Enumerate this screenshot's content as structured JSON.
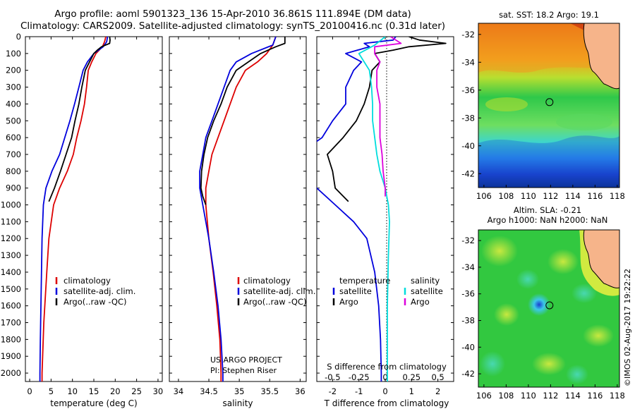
{
  "header": {
    "title_line1": "Argo profile: aoml 5901323_136 15-Apr-2010 36.861S 111.894E (DM data)",
    "title_line2": "Climatology: CARS2009. Satellite-adjusted climatology: synTS_20100416.nc (0.31d later)"
  },
  "colors": {
    "climatology": "#dd0000",
    "satellite": "#0000dd",
    "argo": "#000000",
    "salinity_satellite": "#00dddd",
    "salinity_argo": "#dd00dd",
    "land": "#f6b48a"
  },
  "chart_data": [
    {
      "type": "line",
      "xlabel": "temperature (deg C)",
      "ylabel": "",
      "xlim": [
        -1,
        31
      ],
      "ylim": [
        2050,
        0
      ],
      "xticks": [
        "0",
        "5",
        "10",
        "15",
        "20",
        "25",
        "30"
      ],
      "yticks": [
        "0",
        "100",
        "200",
        "300",
        "400",
        "500",
        "600",
        "700",
        "800",
        "900",
        "1000",
        "1100",
        "1200",
        "1300",
        "1400",
        "1500",
        "1600",
        "1700",
        "1800",
        "1900",
        "2000"
      ],
      "legend": {
        "placement": "middle-right",
        "entries": [
          "climatology",
          "satellite-adj. clim.",
          "Argo(..raw -QC)"
        ]
      },
      "series": [
        {
          "name": "climatology",
          "color": "#dd0000",
          "points": [
            [
              17.8,
              0
            ],
            [
              17.5,
              30
            ],
            [
              17,
              60
            ],
            [
              15.5,
              100
            ],
            [
              14.5,
              150
            ],
            [
              13.7,
              200
            ],
            [
              13.3,
              300
            ],
            [
              12.8,
              400
            ],
            [
              12,
              500
            ],
            [
              11,
              600
            ],
            [
              10.2,
              700
            ],
            [
              8.8,
              800
            ],
            [
              7,
              900
            ],
            [
              5.6,
              1000
            ],
            [
              4.5,
              1200
            ],
            [
              4,
              1400
            ],
            [
              3.3,
              1700
            ],
            [
              2.9,
              2000
            ],
            [
              2.9,
              2050
            ]
          ]
        },
        {
          "name": "satellite-adj. clim.",
          "color": "#0000dd",
          "points": [
            [
              18.2,
              0
            ],
            [
              18,
              30
            ],
            [
              17.2,
              60
            ],
            [
              15,
              100
            ],
            [
              13.5,
              150
            ],
            [
              12.5,
              200
            ],
            [
              11.5,
              300
            ],
            [
              10.5,
              400
            ],
            [
              9.4,
              500
            ],
            [
              8.2,
              600
            ],
            [
              7,
              700
            ],
            [
              5.2,
              800
            ],
            [
              3.8,
              900
            ],
            [
              3.2,
              1000
            ],
            [
              2.9,
              1200
            ],
            [
              2.7,
              1500
            ],
            [
              2.5,
              1800
            ],
            [
              2.4,
              2000
            ],
            [
              2.4,
              2050
            ]
          ]
        },
        {
          "name": "Argo(..raw -QC)",
          "color": "#000000",
          "points": [
            [
              18.7,
              0
            ],
            [
              18.8,
              20
            ],
            [
              18.7,
              40
            ],
            [
              16.8,
              60
            ],
            [
              15.8,
              80
            ],
            [
              15,
              100
            ],
            [
              14,
              150
            ],
            [
              13,
              200
            ],
            [
              12.2,
              300
            ],
            [
              11.5,
              400
            ],
            [
              10.6,
              500
            ],
            [
              9.8,
              600
            ],
            [
              8.5,
              700
            ],
            [
              7.2,
              800
            ],
            [
              5.8,
              900
            ],
            [
              4.5,
              980
            ]
          ]
        }
      ]
    },
    {
      "type": "line",
      "xlabel": "salinity",
      "ylabel": "",
      "xlim": [
        33.85,
        36.1
      ],
      "ylim": [
        2050,
        0
      ],
      "xticks": [
        "34",
        "34.5",
        "35",
        "35.5",
        "36"
      ],
      "legend": {
        "placement": "middle-right",
        "entries": [
          "climatology",
          "satellite-adj. clim.",
          "Argo(..raw -QC)"
        ]
      },
      "annotations": [
        "US ARGO PROJECT",
        "PI: Stephen Riser"
      ],
      "series": [
        {
          "name": "climatology",
          "color": "#dd0000",
          "points": [
            [
              35.6,
              0
            ],
            [
              35.55,
              50
            ],
            [
              35.45,
              100
            ],
            [
              35.3,
              150
            ],
            [
              35.1,
              200
            ],
            [
              34.95,
              300
            ],
            [
              34.85,
              400
            ],
            [
              34.75,
              500
            ],
            [
              34.65,
              600
            ],
            [
              34.55,
              700
            ],
            [
              34.5,
              800
            ],
            [
              34.45,
              900
            ],
            [
              34.45,
              1000
            ],
            [
              34.5,
              1200
            ],
            [
              34.57,
              1400
            ],
            [
              34.63,
              1600
            ],
            [
              34.68,
              1800
            ],
            [
              34.7,
              2000
            ],
            [
              34.7,
              2050
            ]
          ]
        },
        {
          "name": "satellite-adj. clim.",
          "color": "#0000dd",
          "points": [
            [
              35.6,
              0
            ],
            [
              35.55,
              50
            ],
            [
              35.2,
              100
            ],
            [
              34.95,
              150
            ],
            [
              34.85,
              200
            ],
            [
              34.75,
              300
            ],
            [
              34.65,
              400
            ],
            [
              34.55,
              500
            ],
            [
              34.45,
              600
            ],
            [
              34.4,
              700
            ],
            [
              34.35,
              800
            ],
            [
              34.35,
              900
            ],
            [
              34.4,
              1000
            ],
            [
              34.5,
              1200
            ],
            [
              34.58,
              1400
            ],
            [
              34.65,
              1600
            ],
            [
              34.7,
              1800
            ],
            [
              34.73,
              2000
            ],
            [
              34.73,
              2050
            ]
          ]
        },
        {
          "name": "Argo(..raw -QC)",
          "color": "#000000",
          "points": [
            [
              35.75,
              0
            ],
            [
              35.75,
              40
            ],
            [
              35.6,
              60
            ],
            [
              35.35,
              100
            ],
            [
              35.15,
              150
            ],
            [
              34.95,
              200
            ],
            [
              34.8,
              300
            ],
            [
              34.7,
              400
            ],
            [
              34.58,
              500
            ],
            [
              34.48,
              600
            ],
            [
              34.42,
              700
            ],
            [
              34.38,
              800
            ],
            [
              34.37,
              900
            ],
            [
              34.4,
              950
            ],
            [
              34.45,
              1000
            ]
          ]
        }
      ]
    },
    {
      "type": "line",
      "xlabel": "T difference from climatology",
      "x2label": "S difference from climatology",
      "xlim": [
        -2.6,
        2.6
      ],
      "x2lim": [
        -0.65,
        0.65
      ],
      "ylim": [
        2050,
        0
      ],
      "xticks": [
        "-2",
        "-1",
        "0",
        "1",
        "2"
      ],
      "x2ticks": [
        "-0.5",
        "-0.25",
        "0",
        "0.25",
        "0.5"
      ],
      "legend": {
        "placement": "middle",
        "headers": [
          "temperature",
          "salinity"
        ],
        "entries": [
          "satellite",
          "Argo",
          "satellite",
          "Argo"
        ]
      },
      "series": [
        {
          "name": "temperature satellite",
          "axis": "T",
          "color": "#0000dd",
          "points": [
            [
              0.4,
              0
            ],
            [
              0.3,
              20
            ],
            [
              -0.8,
              40
            ],
            [
              -0.6,
              60
            ],
            [
              -1.5,
              100
            ],
            [
              -0.9,
              150
            ],
            [
              -1.2,
              200
            ],
            [
              -1.5,
              300
            ],
            [
              -1.5,
              400
            ],
            [
              -2,
              500
            ],
            [
              -2.4,
              600
            ],
            [
              -3.3,
              700
            ],
            [
              -3.8,
              800
            ],
            [
              -2.6,
              900
            ],
            [
              -1.9,
              1000
            ],
            [
              -1.2,
              1100
            ],
            [
              -0.7,
              1200
            ],
            [
              -0.4,
              1400
            ],
            [
              -0.25,
              1600
            ],
            [
              -0.18,
              1800
            ],
            [
              -0.15,
              2000
            ],
            [
              -0.15,
              2050
            ]
          ]
        },
        {
          "name": "temperature Argo",
          "axis": "T",
          "color": "#000000",
          "points": [
            [
              0.9,
              0
            ],
            [
              1.3,
              20
            ],
            [
              2.3,
              40
            ],
            [
              0.9,
              60
            ],
            [
              0.3,
              80
            ],
            [
              -0.4,
              100
            ],
            [
              -0.2,
              150
            ],
            [
              -0.5,
              200
            ],
            [
              -0.6,
              300
            ],
            [
              -0.8,
              400
            ],
            [
              -1.1,
              500
            ],
            [
              -1.6,
              600
            ],
            [
              -2.2,
              700
            ],
            [
              -2.0,
              800
            ],
            [
              -1.9,
              900
            ],
            [
              -1.4,
              980
            ]
          ]
        },
        {
          "name": "salinity satellite",
          "axis": "S",
          "color": "#00dddd",
          "points": [
            [
              0.0,
              0
            ],
            [
              -0.1,
              50
            ],
            [
              -0.25,
              100
            ],
            [
              -0.15,
              200
            ],
            [
              -0.13,
              300
            ],
            [
              -0.12,
              400
            ],
            [
              -0.12,
              500
            ],
            [
              -0.1,
              600
            ],
            [
              -0.08,
              700
            ],
            [
              -0.05,
              800
            ],
            [
              0,
              900
            ],
            [
              0.03,
              1000
            ],
            [
              0.04,
              1100
            ],
            [
              0.03,
              1300
            ],
            [
              0.02,
              1600
            ],
            [
              0.02,
              2000
            ],
            [
              0.02,
              2050
            ]
          ]
        },
        {
          "name": "salinity Argo",
          "axis": "S",
          "color": "#dd00dd",
          "points": [
            [
              0.05,
              0
            ],
            [
              0.15,
              40
            ],
            [
              -0.1,
              60
            ],
            [
              -0.1,
              100
            ],
            [
              -0.05,
              150
            ],
            [
              -0.08,
              200
            ],
            [
              -0.08,
              300
            ],
            [
              -0.05,
              400
            ],
            [
              -0.05,
              500
            ],
            [
              -0.05,
              600
            ],
            [
              -0.03,
              700
            ],
            [
              -0.02,
              800
            ],
            [
              0.0,
              900
            ],
            [
              0.0,
              950
            ]
          ]
        }
      ]
    }
  ],
  "maps": {
    "sst": {
      "title": "sat. SST: 18.2  Argo: 19.1",
      "xticks": [
        "106",
        "108",
        "110",
        "112",
        "114",
        "116",
        "118"
      ],
      "yticks": [
        "-32",
        "-34",
        "-36",
        "-38",
        "-40",
        "-42"
      ],
      "lonlim": [
        105.5,
        118.2
      ],
      "latlim": [
        -43,
        -31.2
      ],
      "marker": [
        111.9,
        -36.86
      ]
    },
    "sla": {
      "title_line1": "Altim. SLA: -0.21",
      "title_line2": "Argo h1000: NaN h2000: NaN",
      "xticks": [
        "106",
        "108",
        "110",
        "112",
        "114",
        "116",
        "118"
      ],
      "yticks": [
        "-32",
        "-34",
        "-36",
        "-38",
        "-40",
        "-42"
      ],
      "lonlim": [
        105.5,
        118.2
      ],
      "latlim": [
        -43,
        -31.2
      ],
      "marker": [
        111.9,
        -36.86
      ]
    }
  },
  "footer": {
    "credit": "©IMOS 02-Aug-2017 19:22:22"
  }
}
